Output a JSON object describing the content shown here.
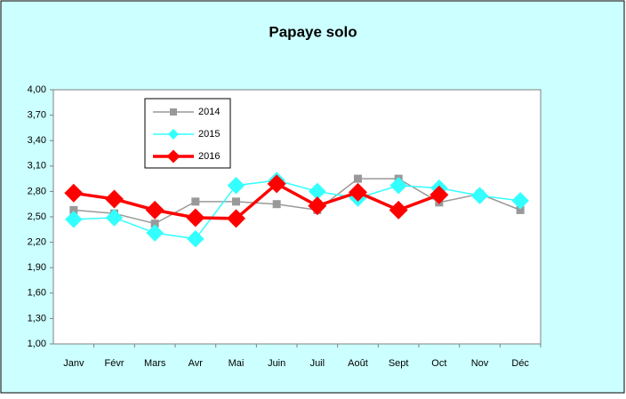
{
  "chart_data": {
    "type": "line",
    "title": "Papaye solo",
    "categories": [
      "Janv",
      "Févr",
      "Mars",
      "Avr",
      "Mai",
      "Juin",
      "Juil",
      "Août",
      "Sept",
      "Oct",
      "Nov",
      "Déc"
    ],
    "series": [
      {
        "name": "2014",
        "color": "#999999",
        "marker": "square",
        "values": [
          2.58,
          2.54,
          2.42,
          2.68,
          2.68,
          2.65,
          2.58,
          2.95,
          2.95,
          2.67,
          2.77,
          2.58
        ]
      },
      {
        "name": "2015",
        "color": "#33ffff",
        "marker": "diamond",
        "values": [
          2.47,
          2.49,
          2.31,
          2.24,
          2.87,
          2.93,
          2.8,
          2.72,
          2.87,
          2.84,
          2.75,
          2.69
        ]
      },
      {
        "name": "2016",
        "color": "#ff0000",
        "marker": "diamond",
        "values": [
          2.78,
          2.71,
          2.58,
          2.49,
          2.48,
          2.89,
          2.63,
          2.79,
          2.58,
          2.76,
          null,
          null
        ]
      }
    ],
    "ylim": [
      1,
      4
    ],
    "yticks": [
      {
        "value": 1,
        "label": "1,00"
      },
      {
        "value": 1.3,
        "label": "1,30"
      },
      {
        "value": 1.6,
        "label": "1,60"
      },
      {
        "value": 1.9,
        "label": "1,90"
      },
      {
        "value": 2.2,
        "label": "2,20"
      },
      {
        "value": 2.5,
        "label": "2,50"
      },
      {
        "value": 2.8,
        "label": "2,80"
      },
      {
        "value": 3.1,
        "label": "3,10"
      },
      {
        "value": 3.4,
        "label": "3,40"
      },
      {
        "value": 3.7,
        "label": "3,70"
      },
      {
        "value": 4,
        "label": "4,00"
      }
    ],
    "grid": false,
    "legend": "upper-left"
  }
}
